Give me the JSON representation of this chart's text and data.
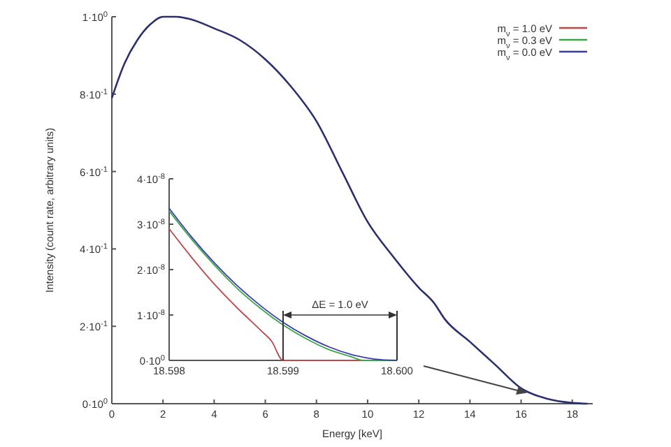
{
  "chart_data": [
    {
      "type": "line",
      "xlabel": "Energy [keV]",
      "ylabel": "Intensity (count rate, arbitrary units)",
      "xlim": [
        0,
        18.8
      ],
      "ylim": [
        0,
        1.0
      ],
      "xticks": [
        0,
        2,
        4,
        6,
        8,
        10,
        12,
        14,
        16,
        18
      ],
      "yticks": [
        {
          "value": 0,
          "label": "0·10$^{0}$"
        },
        {
          "value": 0.2,
          "label": "2·10$^{-1}$"
        },
        {
          "value": 0.4,
          "label": "4·10$^{-1}$"
        },
        {
          "value": 0.6,
          "label": "6·10$^{-1}$"
        },
        {
          "value": 0.8,
          "label": "8·10$^{-1}$"
        },
        {
          "value": 1.0,
          "label": "1·10$^{0}$"
        }
      ],
      "grid": false,
      "legend": false,
      "line_style": "solid",
      "marker": "none",
      "series": [
        {
          "color": "#2b2f6e",
          "x": [
            0,
            0.5,
            1,
            1.5,
            2,
            2.5,
            3,
            4,
            5,
            6,
            7,
            8,
            9,
            10,
            11,
            12,
            12.6,
            13,
            14,
            15,
            16,
            17,
            18,
            18.6
          ],
          "values": [
            0.79,
            0.88,
            0.94,
            0.98,
            1.0,
            1.0,
            0.995,
            0.97,
            0.94,
            0.89,
            0.82,
            0.73,
            0.6,
            0.47,
            0.38,
            0.3,
            0.26,
            0.22,
            0.16,
            0.1,
            0.04,
            0.013,
            0.002,
            0
          ]
        }
      ]
    },
    {
      "type": "line",
      "xlim": [
        18.598,
        18.6
      ],
      "ylim": [
        0,
        4e-08
      ],
      "xticks": [
        18.598,
        18.599,
        {
          "value": 18.6,
          "label": "18.600"
        }
      ],
      "yticks": [
        {
          "value": 0,
          "label": "0·10$^{0}$"
        },
        {
          "value": 1e-08,
          "label": "1·10$^{-8}$"
        },
        {
          "value": 2e-08,
          "label": "2·10$^{-8}$"
        },
        {
          "value": 3e-08,
          "label": "3·10$^{-8}$"
        },
        {
          "value": 4e-08,
          "label": "4·10$^{-8}$"
        }
      ],
      "grid": false,
      "legend": "top right",
      "line_style": "solid",
      "marker": "none",
      "annotations": [
        "ΔE = 1.0 eV"
      ],
      "series": [
        {
          "name": "m$_{ν}$ = 1.0 eV",
          "color": "#b84a4a",
          "x": [
            18.598,
            18.5982,
            18.5984,
            18.5986,
            18.5988,
            18.5989,
            18.599,
            18.5995,
            18.6
          ],
          "values": [
            2.9e-08,
            2.26e-08,
            1.67e-08,
            1.15e-08,
            6.7e-09,
            4.2e-09,
            0,
            0,
            0
          ]
        },
        {
          "name": "m$_{ν}$ = 0.3 eV",
          "color": "#3aa64a",
          "x": [
            18.598,
            18.5982,
            18.5984,
            18.5986,
            18.5988,
            18.599,
            18.5992,
            18.5994,
            18.5996,
            18.5997,
            18.6
          ],
          "values": [
            3.29e-08,
            2.66e-08,
            2.09e-08,
            1.58e-08,
            1.15e-08,
            7.8e-09,
            4.8e-09,
            2.4e-09,
            8e-10,
            0,
            0
          ]
        },
        {
          "name": "m$_{ν}$ = 0.0 eV",
          "color": "#3a3aa8",
          "x": [
            18.598,
            18.5982,
            18.5984,
            18.5986,
            18.5988,
            18.599,
            18.5992,
            18.5994,
            18.5996,
            18.5998,
            18.6
          ],
          "values": [
            3.35e-08,
            2.71e-08,
            2.14e-08,
            1.64e-08,
            1.21e-08,
            8.4e-09,
            5.4e-09,
            3e-09,
            1.3e-09,
            3e-10,
            0
          ]
        }
      ]
    }
  ]
}
